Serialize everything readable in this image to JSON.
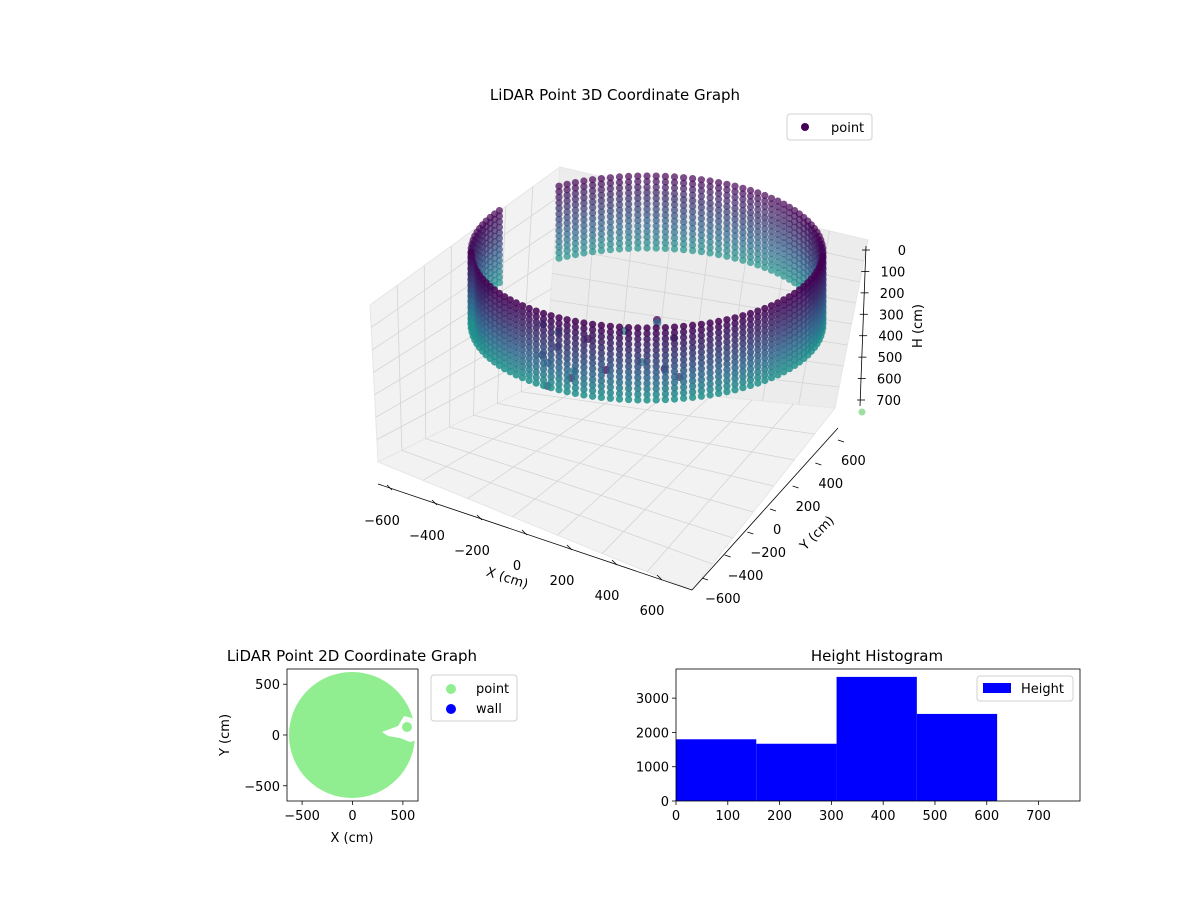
{
  "chart_data": [
    {
      "type": "scatter3d",
      "title": "LiDAR Point 3D Coordinate Graph",
      "xlabel": "X (cm)",
      "ylabel": "Y (cm)",
      "zlabel": "H (cm)",
      "xticks": [
        "−600",
        "−400",
        "−200",
        "0",
        "200",
        "400",
        "600"
      ],
      "yticks": [
        "−600",
        "−400",
        "−200",
        "0",
        "200",
        "400",
        "600"
      ],
      "zticks": [
        "0",
        "100",
        "200",
        "300",
        "400",
        "500",
        "600",
        "700"
      ],
      "xlim": [
        -650,
        650
      ],
      "ylim": [
        -650,
        650
      ],
      "zlim": [
        0,
        750
      ],
      "z_inverted": true,
      "legend": {
        "placement": "top-right",
        "entries": [
          {
            "name": "point",
            "color": "#440154"
          }
        ]
      },
      "colormap": "viridis",
      "wall_radius": 600,
      "wall_height": 700
    },
    {
      "type": "scatter",
      "title": "LiDAR Point 2D Coordinate Graph",
      "xlabel": "X (cm)",
      "ylabel": "Y (cm)",
      "xticks": [
        "−500",
        "0",
        "500"
      ],
      "yticks": [
        "−500",
        "0",
        "500"
      ],
      "xlim": [
        -650,
        650
      ],
      "ylim": [
        -650,
        650
      ],
      "legend": {
        "placement": "outside-right",
        "entries": [
          {
            "name": "point",
            "color": "#90ee90"
          },
          {
            "name": "wall",
            "color": "#0000ff"
          }
        ]
      },
      "point_cloud_radius": 620
    },
    {
      "type": "bar",
      "title": "Height Histogram",
      "xticks": [
        "0",
        "100",
        "200",
        "300",
        "400",
        "500",
        "600",
        "700"
      ],
      "yticks": [
        "0",
        "1000",
        "2000",
        "3000"
      ],
      "xlim": [
        0,
        780
      ],
      "ylim": [
        0,
        3850
      ],
      "bins": [
        {
          "x0": 0,
          "x1": 155,
          "count": 1800
        },
        {
          "x0": 155,
          "x1": 310,
          "count": 1670
        },
        {
          "x0": 310,
          "x1": 465,
          "count": 3620
        },
        {
          "x0": 465,
          "x1": 620,
          "count": 2540
        }
      ],
      "color": "#0000ff",
      "legend": {
        "placement": "top-right",
        "entries": [
          {
            "name": "Height",
            "color": "#0000ff"
          }
        ]
      }
    }
  ]
}
